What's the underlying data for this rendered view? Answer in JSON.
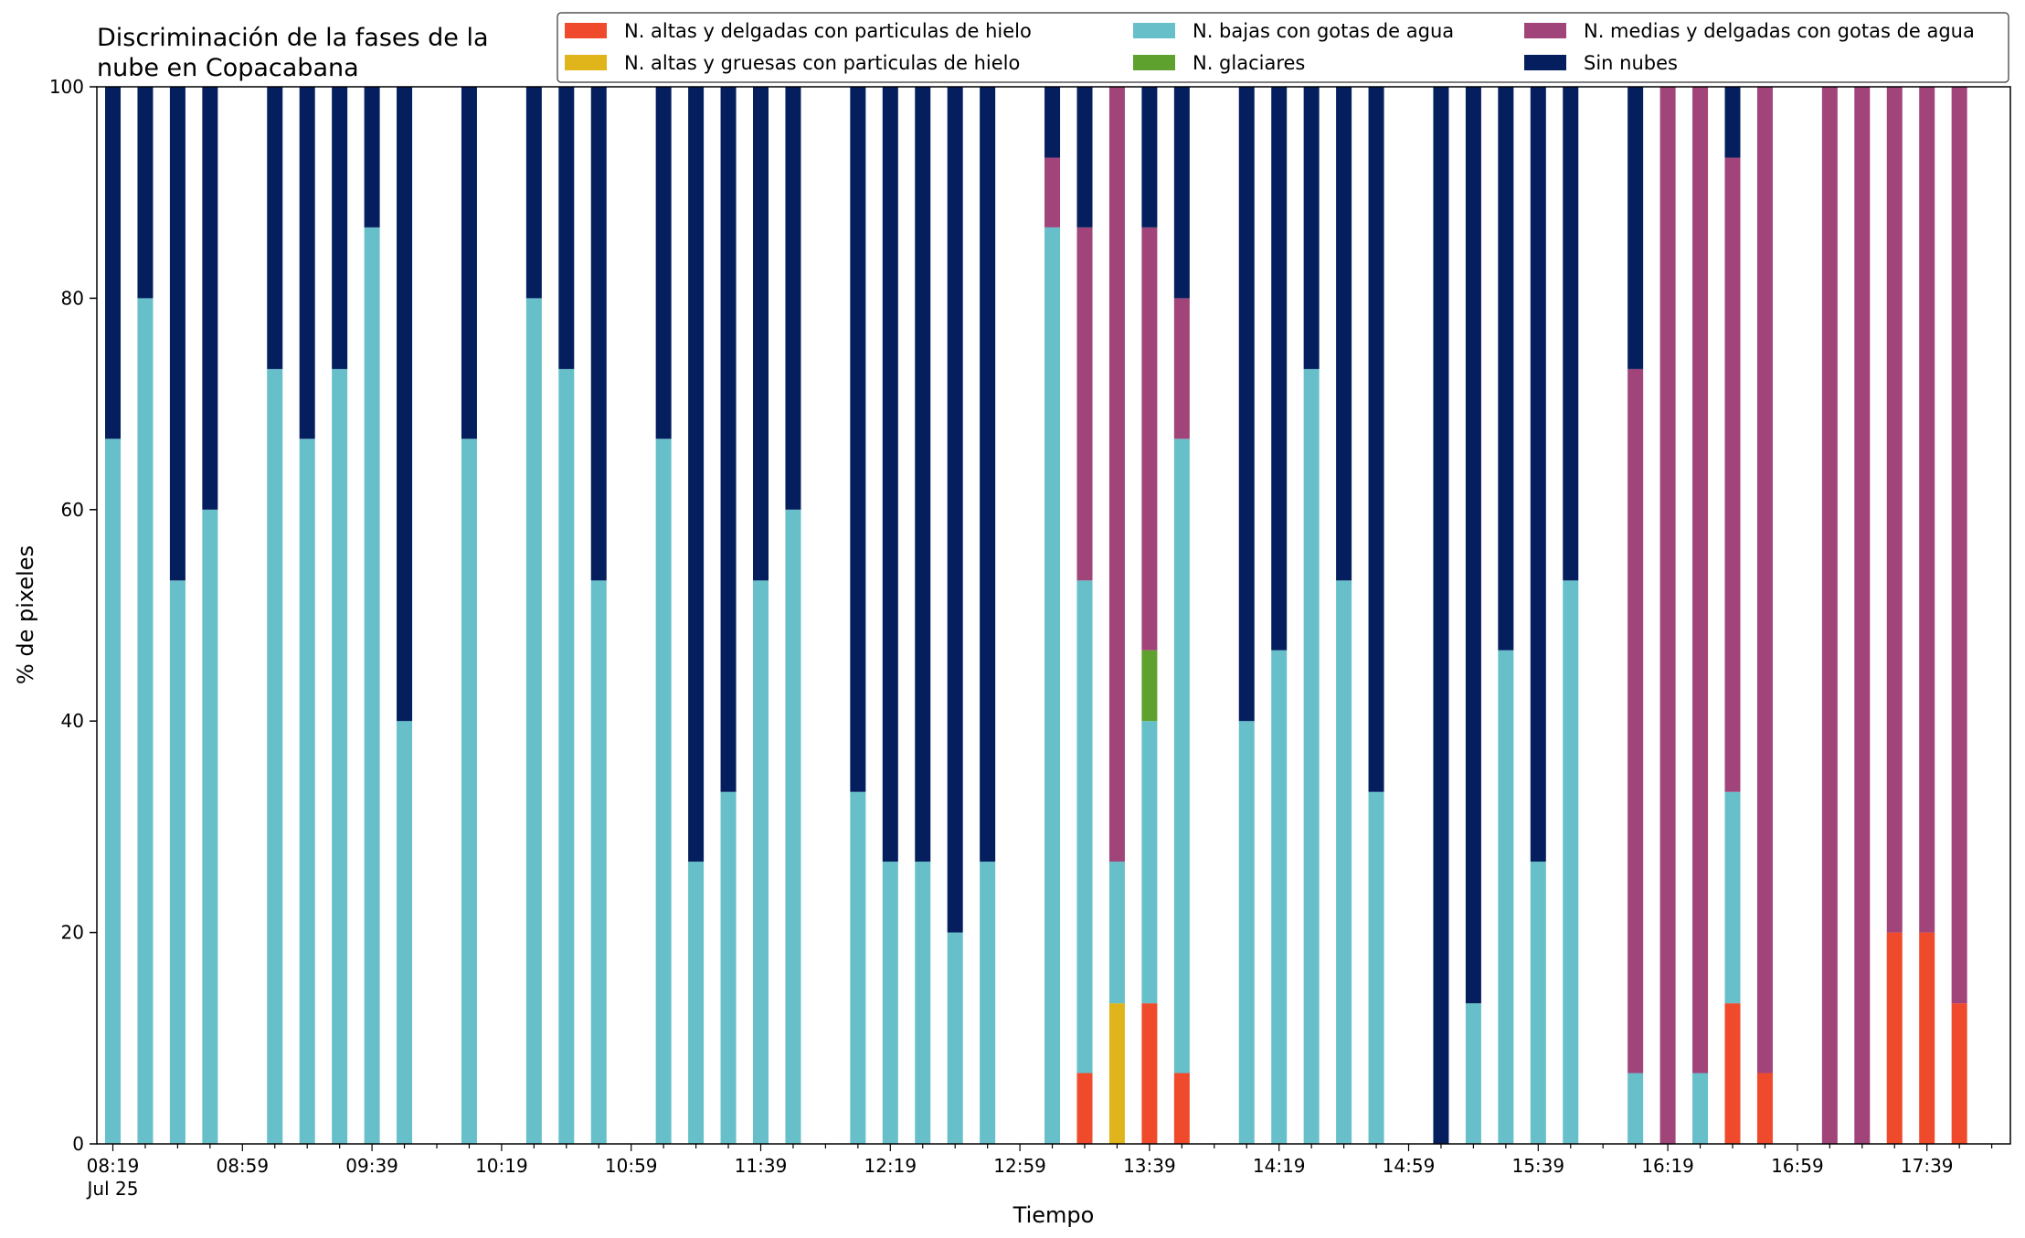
{
  "chart_data": {
    "type": "bar",
    "stacked": true,
    "title_line1": "Discriminación de la fases de la",
    "title_line2": "nube en Copacabana",
    "xlabel": "Tiempo",
    "ylabel": "% de pixeles",
    "ylim": [
      0,
      100
    ],
    "yticks": [
      "0",
      "20",
      "40",
      "60",
      "80",
      "100"
    ],
    "xtick_labels": [
      {
        "slot": 0,
        "label": "08:19"
      },
      {
        "slot": 4,
        "label": "08:59"
      },
      {
        "slot": 8,
        "label": "09:39"
      },
      {
        "slot": 12,
        "label": "10:19"
      },
      {
        "slot": 16,
        "label": "10:59"
      },
      {
        "slot": 20,
        "label": "11:39"
      },
      {
        "slot": 24,
        "label": "12:19"
      },
      {
        "slot": 28,
        "label": "12:59"
      },
      {
        "slot": 32,
        "label": "13:39"
      },
      {
        "slot": 36,
        "label": "14:19"
      },
      {
        "slot": 40,
        "label": "14:59"
      },
      {
        "slot": 44,
        "label": "15:39"
      },
      {
        "slot": 48,
        "label": "16:19"
      },
      {
        "slot": 52,
        "label": "16:59"
      },
      {
        "slot": 56,
        "label": "17:39"
      }
    ],
    "date_label": "Jul 25",
    "bar_interval_minutes": 10,
    "legend_position": "top-right",
    "series": [
      {
        "name": "N. altas y delgadas con particulas de hielo",
        "color": "#ef4a2b"
      },
      {
        "name": "N. altas y gruesas con particulas de hielo",
        "color": "#e0b41b"
      },
      {
        "name": "N. bajas con gotas de agua",
        "color": "#66bfc9"
      },
      {
        "name": "N. glaciares",
        "color": "#5fa12f"
      },
      {
        "name": "N. medias y delgadas con gotas de agua",
        "color": "#a0447a"
      },
      {
        "name": "Sin nubes",
        "color": "#041e5e"
      }
    ],
    "bars": [
      {
        "time": "08:19",
        "values": [
          0,
          0,
          66.7,
          0,
          0,
          33.3
        ]
      },
      {
        "time": "08:29",
        "values": [
          0,
          0,
          80,
          0,
          0,
          20
        ]
      },
      {
        "time": "08:39",
        "values": [
          0,
          0,
          53.3,
          0,
          0,
          46.7
        ]
      },
      {
        "time": "08:49",
        "values": [
          0,
          0,
          60,
          0,
          0,
          40
        ]
      },
      {
        "time": "09:09",
        "values": [
          0,
          0,
          73.3,
          0,
          0,
          26.7
        ]
      },
      {
        "time": "09:19",
        "values": [
          0,
          0,
          66.7,
          0,
          0,
          33.3
        ]
      },
      {
        "time": "09:29",
        "values": [
          0,
          0,
          73.3,
          0,
          0,
          26.7
        ]
      },
      {
        "time": "09:39",
        "values": [
          0,
          0,
          86.7,
          0,
          0,
          13.3
        ]
      },
      {
        "time": "09:49",
        "values": [
          0,
          0,
          40,
          0,
          0,
          60
        ]
      },
      {
        "time": "10:09",
        "values": [
          0,
          0,
          66.7,
          0,
          0,
          33.3
        ]
      },
      {
        "time": "10:29",
        "values": [
          0,
          0,
          80,
          0,
          0,
          20
        ]
      },
      {
        "time": "10:39",
        "values": [
          0,
          0,
          73.3,
          0,
          0,
          26.7
        ]
      },
      {
        "time": "10:49",
        "values": [
          0,
          0,
          53.3,
          0,
          0,
          46.7
        ]
      },
      {
        "time": "11:09",
        "values": [
          0,
          0,
          66.7,
          0,
          0,
          33.3
        ]
      },
      {
        "time": "11:19",
        "values": [
          0,
          0,
          26.7,
          0,
          0,
          73.3
        ]
      },
      {
        "time": "11:29",
        "values": [
          0,
          0,
          33.3,
          0,
          0,
          66.7
        ]
      },
      {
        "time": "11:39",
        "values": [
          0,
          0,
          53.3,
          0,
          0,
          46.7
        ]
      },
      {
        "time": "11:49",
        "values": [
          0,
          0,
          60,
          0,
          0,
          40
        ]
      },
      {
        "time": "12:09",
        "values": [
          0,
          0,
          33.3,
          0,
          0,
          66.7
        ]
      },
      {
        "time": "12:19",
        "values": [
          0,
          0,
          26.7,
          0,
          0,
          73.3
        ]
      },
      {
        "time": "12:29",
        "values": [
          0,
          0,
          26.7,
          0,
          0,
          73.3
        ]
      },
      {
        "time": "12:39",
        "values": [
          0,
          0,
          20,
          0,
          0,
          80
        ]
      },
      {
        "time": "12:49",
        "values": [
          0,
          0,
          26.7,
          0,
          0,
          73.3
        ]
      },
      {
        "time": "13:09",
        "values": [
          0,
          0,
          86.7,
          0,
          6.6,
          6.7
        ]
      },
      {
        "time": "13:19",
        "values": [
          6.7,
          0,
          46.6,
          0,
          33.4,
          13.3
        ]
      },
      {
        "time": "13:29",
        "values": [
          0,
          13.3,
          13.4,
          0,
          73.3,
          0
        ]
      },
      {
        "time": "13:39",
        "values": [
          13.3,
          0,
          26.7,
          6.7,
          40,
          13.3
        ]
      },
      {
        "time": "13:49",
        "values": [
          6.7,
          0,
          60,
          0,
          13.3,
          20
        ]
      },
      {
        "time": "14:09",
        "values": [
          0,
          0,
          40,
          0,
          0,
          60
        ]
      },
      {
        "time": "14:19",
        "values": [
          0,
          0,
          46.7,
          0,
          0,
          53.3
        ]
      },
      {
        "time": "14:29",
        "values": [
          0,
          0,
          73.3,
          0,
          0,
          26.7
        ]
      },
      {
        "time": "14:39",
        "values": [
          0,
          0,
          53.3,
          0,
          0,
          46.7
        ]
      },
      {
        "time": "14:49",
        "values": [
          0,
          0,
          33.3,
          0,
          0,
          66.7
        ]
      },
      {
        "time": "15:09",
        "values": [
          0,
          0,
          0,
          0,
          0,
          100
        ]
      },
      {
        "time": "15:19",
        "values": [
          0,
          0,
          13.3,
          0,
          0,
          86.7
        ]
      },
      {
        "time": "15:29",
        "values": [
          0,
          0,
          46.7,
          0,
          0,
          53.3
        ]
      },
      {
        "time": "15:39",
        "values": [
          0,
          0,
          26.7,
          0,
          0,
          73.3
        ]
      },
      {
        "time": "15:49",
        "values": [
          0,
          0,
          53.3,
          0,
          0,
          46.7
        ]
      },
      {
        "time": "16:09",
        "values": [
          0,
          0,
          6.7,
          0,
          66.6,
          26.7
        ]
      },
      {
        "time": "16:19",
        "values": [
          0,
          0,
          0,
          0,
          100,
          0
        ]
      },
      {
        "time": "16:29",
        "values": [
          0,
          0,
          6.7,
          0,
          93.3,
          0
        ]
      },
      {
        "time": "16:39",
        "values": [
          13.3,
          0,
          20,
          0,
          60,
          6.7
        ]
      },
      {
        "time": "16:49",
        "values": [
          6.7,
          0,
          0,
          0,
          93.3,
          0
        ]
      },
      {
        "time": "17:09",
        "values": [
          0,
          0,
          0,
          0,
          100,
          0
        ]
      },
      {
        "time": "17:19",
        "values": [
          0,
          0,
          0,
          0,
          100,
          0
        ]
      },
      {
        "time": "17:29",
        "values": [
          20,
          0,
          0,
          0,
          80,
          0
        ]
      },
      {
        "time": "17:39",
        "values": [
          20,
          0,
          0,
          0,
          80,
          0
        ]
      },
      {
        "time": "17:49",
        "values": [
          13.3,
          0,
          0,
          0,
          86.7,
          0
        ]
      }
    ]
  }
}
